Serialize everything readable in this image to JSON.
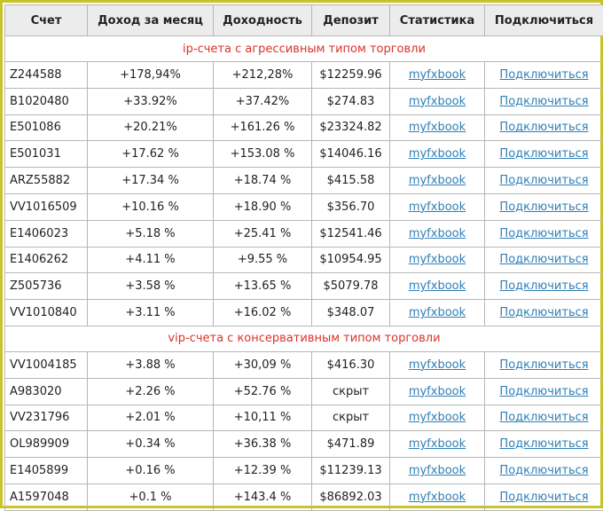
{
  "headers": [
    "Счет",
    "Доход за месяц",
    "Доходность",
    "Депозит",
    "Статистика",
    "Подключиться"
  ],
  "groups": [
    {
      "title": "ip-счета с агрессивным типом торговли",
      "rows": [
        {
          "account": "Z244588",
          "month": "+178,94%",
          "yield": "+212,28%",
          "deposit": "$12259.96",
          "stats": "myfxbook",
          "connect": "Подключиться"
        },
        {
          "account": "B1020480",
          "month": "+33.92%",
          "yield": "+37.42%",
          "deposit": "$274.83",
          "stats": "myfxbook",
          "connect": "Подключиться"
        },
        {
          "account": "E501086",
          "month": "+20.21%",
          "yield": "+161.26 %",
          "deposit": "$23324.82",
          "stats": "myfxbook",
          "connect": "Подключиться"
        },
        {
          "account": "E501031",
          "month": "+17.62 %",
          "yield": "+153.08 %",
          "deposit": "$14046.16",
          "stats": "myfxbook",
          "connect": "Подключиться"
        },
        {
          "account": "ARZ55882",
          "month": "+17.34 %",
          "yield": "+18.74 %",
          "deposit": "$415.58",
          "stats": "myfxbook",
          "connect": "Подключиться"
        },
        {
          "account": "VV1016509",
          "month": "+10.16 %",
          "yield": "+18.90 %",
          "deposit": "$356.70",
          "stats": "myfxbook",
          "connect": "Подключиться"
        },
        {
          "account": "E1406023",
          "month": "+5.18 %",
          "yield": "+25.41 %",
          "deposit": "$12541.46",
          "stats": "myfxbook",
          "connect": "Подключиться"
        },
        {
          "account": "E1406262",
          "month": "+4.11 %",
          "yield": "+9.55 %",
          "deposit": "$10954.95",
          "stats": "myfxbook",
          "connect": "Подключиться"
        },
        {
          "account": "Z505736",
          "month": "+3.58 %",
          "yield": "+13.65 %",
          "deposit": "$5079.78",
          "stats": "myfxbook",
          "connect": "Подключиться"
        },
        {
          "account": "VV1010840",
          "month": "+3.11 %",
          "yield": "+16.02 %",
          "deposit": "$348.07",
          "stats": "myfxbook",
          "connect": "Подключиться"
        }
      ]
    },
    {
      "title": "vip-счета с консервативным типом торговли",
      "rows": [
        {
          "account": "VV1004185",
          "month": "+3.88 %",
          "yield": "+30,09 %",
          "deposit": "$416.30",
          "stats": "myfxbook",
          "connect": "Подключиться"
        },
        {
          "account": "A983020",
          "month": "+2.26 %",
          "yield": "+52.76 %",
          "deposit": "скрыт",
          "stats": "myfxbook",
          "connect": "Подключиться"
        },
        {
          "account": "VV231796",
          "month": "+2.01 %",
          "yield": "+10,11 %",
          "deposit": "скрыт",
          "stats": "myfxbook",
          "connect": "Подключиться"
        },
        {
          "account": "OL989909",
          "month": "+0.34 %",
          "yield": "+36.38 %",
          "deposit": "$471.89",
          "stats": "myfxbook",
          "connect": "Подключиться"
        },
        {
          "account": "E1405899",
          "month": "+0.16 %",
          "yield": "+12.39 %",
          "deposit": "$11239.13",
          "stats": "myfxbook",
          "connect": "Подключиться"
        },
        {
          "account": "A1597048",
          "month": "+0.1 %",
          "yield": "+143.4 %",
          "deposit": "$86892.03",
          "stats": "myfxbook",
          "connect": "Подключиться"
        }
      ]
    }
  ]
}
